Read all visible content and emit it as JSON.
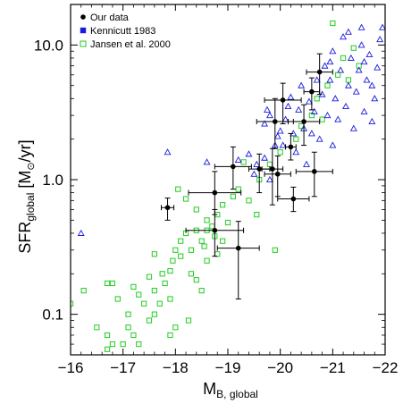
{
  "chart_data": {
    "type": "scatter",
    "xlabel": {
      "main": "M",
      "sub": "B, global"
    },
    "ylabel": {
      "main": "SFR",
      "sub": "global",
      "unit_pre": " [M",
      "unit_sym": "⊙",
      "unit_post": "/yr]"
    },
    "xlim": [
      -16,
      -22
    ],
    "ylim": [
      0.05,
      20
    ],
    "yscale": "log",
    "x_ticks": [
      -16,
      -17,
      -18,
      -19,
      -20,
      -21,
      -22
    ],
    "x_tick_labels": [
      "−16",
      "−17",
      "−18",
      "−19",
      "−20",
      "−21",
      "−22"
    ],
    "y_ticks": [
      0.1,
      1.0,
      10.0
    ],
    "y_tick_labels": [
      "0.1",
      "1.0",
      "10.0"
    ],
    "legend_position": "top-left",
    "colors": {
      "our_data": "#000000",
      "kennicutt": "#1a1adc",
      "jansen": "#22cc22"
    },
    "series": [
      {
        "name": "Our data",
        "marker": "filled-circle",
        "points": [
          {
            "x": -17.85,
            "y": 0.62,
            "xerr": 0.12,
            "ylo": 0.5,
            "yhi": 0.73
          },
          {
            "x": -18.75,
            "y": 0.8,
            "xerr": 0.5,
            "ylo": 0.55,
            "yhi": 1.15
          },
          {
            "x": -18.75,
            "y": 0.42,
            "xerr": 0.55,
            "ylo": 0.27,
            "yhi": 0.6
          },
          {
            "x": -19.1,
            "y": 1.25,
            "xerr": 0.35,
            "ylo": 0.85,
            "yhi": 1.75
          },
          {
            "x": -19.2,
            "y": 0.31,
            "xerr": 0.4,
            "ylo": 0.13,
            "yhi": 0.49
          },
          {
            "x": -19.6,
            "y": 1.2,
            "xerr": 0.2,
            "ylo": 0.8,
            "yhi": 1.55
          },
          {
            "x": -19.85,
            "y": 1.2,
            "xerr": 0.2,
            "ylo": 0.65,
            "yhi": 1.7
          },
          {
            "x": -19.9,
            "y": 2.7,
            "xerr": 0.35,
            "ylo": 1.7,
            "yhi": 4.0
          },
          {
            "x": -19.95,
            "y": 1.1,
            "xerr": 0.25,
            "ylo": 0.75,
            "yhi": 1.5
          },
          {
            "x": -20.05,
            "y": 3.9,
            "xerr": 0.35,
            "ylo": 2.6,
            "yhi": 5.2
          },
          {
            "x": -20.2,
            "y": 1.75,
            "xerr": 0.1,
            "ylo": 1.4,
            "yhi": 2.2
          },
          {
            "x": -20.25,
            "y": 0.72,
            "xerr": 0.3,
            "ylo": 0.58,
            "yhi": 0.88
          },
          {
            "x": -20.45,
            "y": 2.7,
            "xerr": 0.3,
            "ylo": 1.8,
            "yhi": 3.6
          },
          {
            "x": -20.6,
            "y": 4.5,
            "xerr": 0.15,
            "ylo": 3.3,
            "yhi": 5.7
          },
          {
            "x": -20.65,
            "y": 1.15,
            "xerr": 0.35,
            "ylo": 0.75,
            "yhi": 1.6
          },
          {
            "x": -20.75,
            "y": 6.3,
            "xerr": 0.25,
            "ylo": 4.3,
            "yhi": 8.6
          }
        ]
      },
      {
        "name": "Kennicutt 1983",
        "marker": "open-triangle",
        "points": [
          {
            "x": -16.2,
            "y": 0.4
          },
          {
            "x": -17.85,
            "y": 1.6
          },
          {
            "x": -18.6,
            "y": 1.35
          },
          {
            "x": -19.2,
            "y": 1.4
          },
          {
            "x": -19.4,
            "y": 1.55
          },
          {
            "x": -19.5,
            "y": 1.1
          },
          {
            "x": -19.55,
            "y": 1.3
          },
          {
            "x": -19.7,
            "y": 1.45
          },
          {
            "x": -19.8,
            "y": 1.0
          },
          {
            "x": -19.9,
            "y": 1.8
          },
          {
            "x": -19.95,
            "y": 2.1
          },
          {
            "x": -19.7,
            "y": 2.6
          },
          {
            "x": -19.8,
            "y": 3.0
          },
          {
            "x": -19.75,
            "y": 3.3
          },
          {
            "x": -20.0,
            "y": 2.3
          },
          {
            "x": -20.05,
            "y": 1.8
          },
          {
            "x": -20.1,
            "y": 2.8
          },
          {
            "x": -20.15,
            "y": 3.5
          },
          {
            "x": -20.2,
            "y": 4.1
          },
          {
            "x": -20.25,
            "y": 2.2
          },
          {
            "x": -20.3,
            "y": 1.6
          },
          {
            "x": -20.35,
            "y": 3.3
          },
          {
            "x": -20.4,
            "y": 5.0
          },
          {
            "x": -20.45,
            "y": 2.4
          },
          {
            "x": -20.5,
            "y": 1.3
          },
          {
            "x": -20.55,
            "y": 3.8
          },
          {
            "x": -20.6,
            "y": 2.2
          },
          {
            "x": -20.65,
            "y": 3.2
          },
          {
            "x": -20.7,
            "y": 5.5
          },
          {
            "x": -20.75,
            "y": 2.0
          },
          {
            "x": -20.8,
            "y": 4.3
          },
          {
            "x": -20.85,
            "y": 7.0
          },
          {
            "x": -20.9,
            "y": 3.0
          },
          {
            "x": -20.95,
            "y": 5.5
          },
          {
            "x": -21.0,
            "y": 1.8
          },
          {
            "x": -21.0,
            "y": 9.0
          },
          {
            "x": -21.05,
            "y": 4.0
          },
          {
            "x": -21.1,
            "y": 2.8
          },
          {
            "x": -21.15,
            "y": 6.5
          },
          {
            "x": -21.2,
            "y": 11.5
          },
          {
            "x": -21.25,
            "y": 3.5
          },
          {
            "x": -21.3,
            "y": 5.0
          },
          {
            "x": -21.35,
            "y": 8.0
          },
          {
            "x": -21.4,
            "y": 2.4
          },
          {
            "x": -21.45,
            "y": 4.5
          },
          {
            "x": -21.5,
            "y": 6.5
          },
          {
            "x": -21.55,
            "y": 10.0
          },
          {
            "x": -21.6,
            "y": 3.2
          },
          {
            "x": -21.65,
            "y": 5.5
          },
          {
            "x": -21.7,
            "y": 8.5
          },
          {
            "x": -21.75,
            "y": 2.7
          },
          {
            "x": -21.8,
            "y": 4.0
          },
          {
            "x": -21.85,
            "y": 6.8
          },
          {
            "x": -21.9,
            "y": 11.0
          },
          {
            "x": -21.55,
            "y": 13.5
          },
          {
            "x": -21.95,
            "y": 13.5
          },
          {
            "x": -21.3,
            "y": 12.5
          },
          {
            "x": -20.95,
            "y": 7.5
          },
          {
            "x": -21.6,
            "y": 7.5
          },
          {
            "x": -21.75,
            "y": 5.0
          }
        ]
      },
      {
        "name": "Jansen et al. 2000",
        "marker": "open-square",
        "points": [
          {
            "x": -16.0,
            "y": 0.12
          },
          {
            "x": -16.25,
            "y": 0.15
          },
          {
            "x": -16.7,
            "y": 0.17
          },
          {
            "x": -16.8,
            "y": 0.17
          },
          {
            "x": -16.9,
            "y": 0.13
          },
          {
            "x": -17.1,
            "y": 0.1
          },
          {
            "x": -17.3,
            "y": 0.14
          },
          {
            "x": -17.4,
            "y": 0.12
          },
          {
            "x": -17.6,
            "y": 0.15
          },
          {
            "x": -17.75,
            "y": 0.2
          },
          {
            "x": -17.8,
            "y": 0.17
          },
          {
            "x": -17.9,
            "y": 0.21
          },
          {
            "x": -17.95,
            "y": 0.25
          },
          {
            "x": -18.0,
            "y": 0.3
          },
          {
            "x": -18.1,
            "y": 0.35
          },
          {
            "x": -18.2,
            "y": 0.4
          },
          {
            "x": -18.3,
            "y": 0.3
          },
          {
            "x": -18.4,
            "y": 0.42
          },
          {
            "x": -18.5,
            "y": 0.35
          },
          {
            "x": -18.6,
            "y": 0.5
          },
          {
            "x": -18.7,
            "y": 0.45
          },
          {
            "x": -18.75,
            "y": 0.38
          },
          {
            "x": -18.8,
            "y": 0.55
          },
          {
            "x": -18.9,
            "y": 0.65
          },
          {
            "x": -19.0,
            "y": 0.48
          },
          {
            "x": -19.1,
            "y": 0.75
          },
          {
            "x": -19.2,
            "y": 0.85
          },
          {
            "x": -19.4,
            "y": 0.7
          },
          {
            "x": -19.6,
            "y": 1.0
          },
          {
            "x": -19.8,
            "y": 1.3
          },
          {
            "x": -19.9,
            "y": 0.3
          },
          {
            "x": -20.0,
            "y": 1.6
          },
          {
            "x": -20.3,
            "y": 2.0
          },
          {
            "x": -20.4,
            "y": 2.5
          },
          {
            "x": -20.6,
            "y": 3.0
          },
          {
            "x": -20.7,
            "y": 4.0
          },
          {
            "x": -20.8,
            "y": 2.8
          },
          {
            "x": -20.9,
            "y": 5.0
          },
          {
            "x": -21.0,
            "y": 14.5
          },
          {
            "x": -21.1,
            "y": 6.0
          },
          {
            "x": -21.2,
            "y": 8.0
          },
          {
            "x": -21.3,
            "y": 5.5
          },
          {
            "x": -21.4,
            "y": 9.5
          },
          {
            "x": -21.5,
            "y": 7.0
          },
          {
            "x": -17.2,
            "y": 0.07
          },
          {
            "x": -17.0,
            "y": 0.06
          },
          {
            "x": -16.8,
            "y": 0.06
          },
          {
            "x": -16.7,
            "y": 0.07
          },
          {
            "x": -17.3,
            "y": 0.06
          },
          {
            "x": -17.5,
            "y": 0.09
          },
          {
            "x": -17.6,
            "y": 0.1
          },
          {
            "x": -17.9,
            "y": 0.07
          },
          {
            "x": -18.0,
            "y": 0.08
          },
          {
            "x": -18.25,
            "y": 0.09
          },
          {
            "x": -18.4,
            "y": 0.18
          },
          {
            "x": -18.5,
            "y": 0.15
          },
          {
            "x": -18.6,
            "y": 0.25
          },
          {
            "x": -18.55,
            "y": 0.32
          },
          {
            "x": -18.8,
            "y": 0.28
          },
          {
            "x": -18.3,
            "y": 0.2
          },
          {
            "x": -17.7,
            "y": 0.12
          },
          {
            "x": -17.1,
            "y": 0.08
          },
          {
            "x": -16.5,
            "y": 0.08
          },
          {
            "x": -16.7,
            "y": 0.055
          },
          {
            "x": -17.9,
            "y": 0.13
          },
          {
            "x": -18.1,
            "y": 0.27
          },
          {
            "x": -18.4,
            "y": 0.6
          },
          {
            "x": -18.05,
            "y": 0.85
          },
          {
            "x": -18.2,
            "y": 0.72
          },
          {
            "x": -18.9,
            "y": 0.35
          },
          {
            "x": -19.55,
            "y": 0.55
          },
          {
            "x": -19.3,
            "y": 1.35
          },
          {
            "x": -17.5,
            "y": 0.19
          },
          {
            "x": -17.2,
            "y": 0.16
          },
          {
            "x": -18.6,
            "y": 0.42
          },
          {
            "x": -17.6,
            "y": 0.28
          }
        ]
      }
    ]
  }
}
